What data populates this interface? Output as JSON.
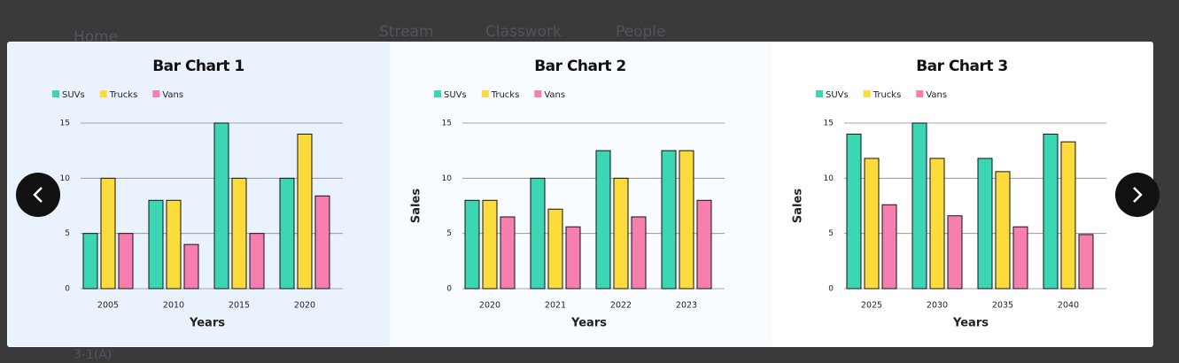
{
  "background": {
    "nav": [
      "Home",
      "Stream",
      "Classwork",
      "People"
    ],
    "footer": "3-1(A)"
  },
  "chart_data": [
    {
      "type": "bar",
      "title": "Bar Chart 1",
      "x_label": "Years",
      "categories": [
        "2005",
        "2010",
        "2015",
        "2020"
      ],
      "series": [
        {
          "name": "SUVs",
          "color": "#3dd6b5",
          "values": [
            5,
            8,
            15,
            10
          ]
        },
        {
          "name": "Trucks",
          "color": "#fcdc3c",
          "values": [
            10,
            8,
            10,
            14
          ]
        },
        {
          "name": "Vans",
          "color": "#f77fb0",
          "values": [
            5,
            4,
            5,
            8.4
          ]
        }
      ],
      "ylim": [
        0,
        15
      ],
      "yticks": [
        0,
        5,
        10,
        15
      ],
      "grid": true
    },
    {
      "type": "bar",
      "title": "Bar Chart 2",
      "x_label": "Years",
      "y_label": "Sales",
      "categories": [
        "2020",
        "2021",
        "2022",
        "2023"
      ],
      "series": [
        {
          "name": "SUVs",
          "color": "#3dd6b5",
          "values": [
            8,
            10,
            12.5,
            12.5
          ]
        },
        {
          "name": "Trucks",
          "color": "#fcdc3c",
          "values": [
            8,
            7.2,
            10,
            12.5
          ]
        },
        {
          "name": "Vans",
          "color": "#f77fb0",
          "values": [
            6.5,
            5.6,
            6.5,
            8
          ]
        }
      ],
      "ylim": [
        0,
        15
      ],
      "yticks": [
        0,
        5,
        10,
        15
      ],
      "grid": true
    },
    {
      "type": "bar",
      "title": "Bar Chart 3",
      "x_label": "Years",
      "y_label": "Sales",
      "categories": [
        "2025",
        "2030",
        "2035",
        "2040"
      ],
      "series": [
        {
          "name": "SUVs",
          "color": "#3dd6b5",
          "values": [
            14,
            15,
            11.8,
            14
          ]
        },
        {
          "name": "Trucks",
          "color": "#fcdc3c",
          "values": [
            11.8,
            11.8,
            10.6,
            13.3
          ]
        },
        {
          "name": "Vans",
          "color": "#f77fb0",
          "values": [
            7.6,
            6.6,
            5.6,
            4.9
          ]
        }
      ],
      "ylim": [
        0,
        15
      ],
      "yticks": [
        0,
        5,
        10,
        15
      ],
      "grid": true
    }
  ]
}
